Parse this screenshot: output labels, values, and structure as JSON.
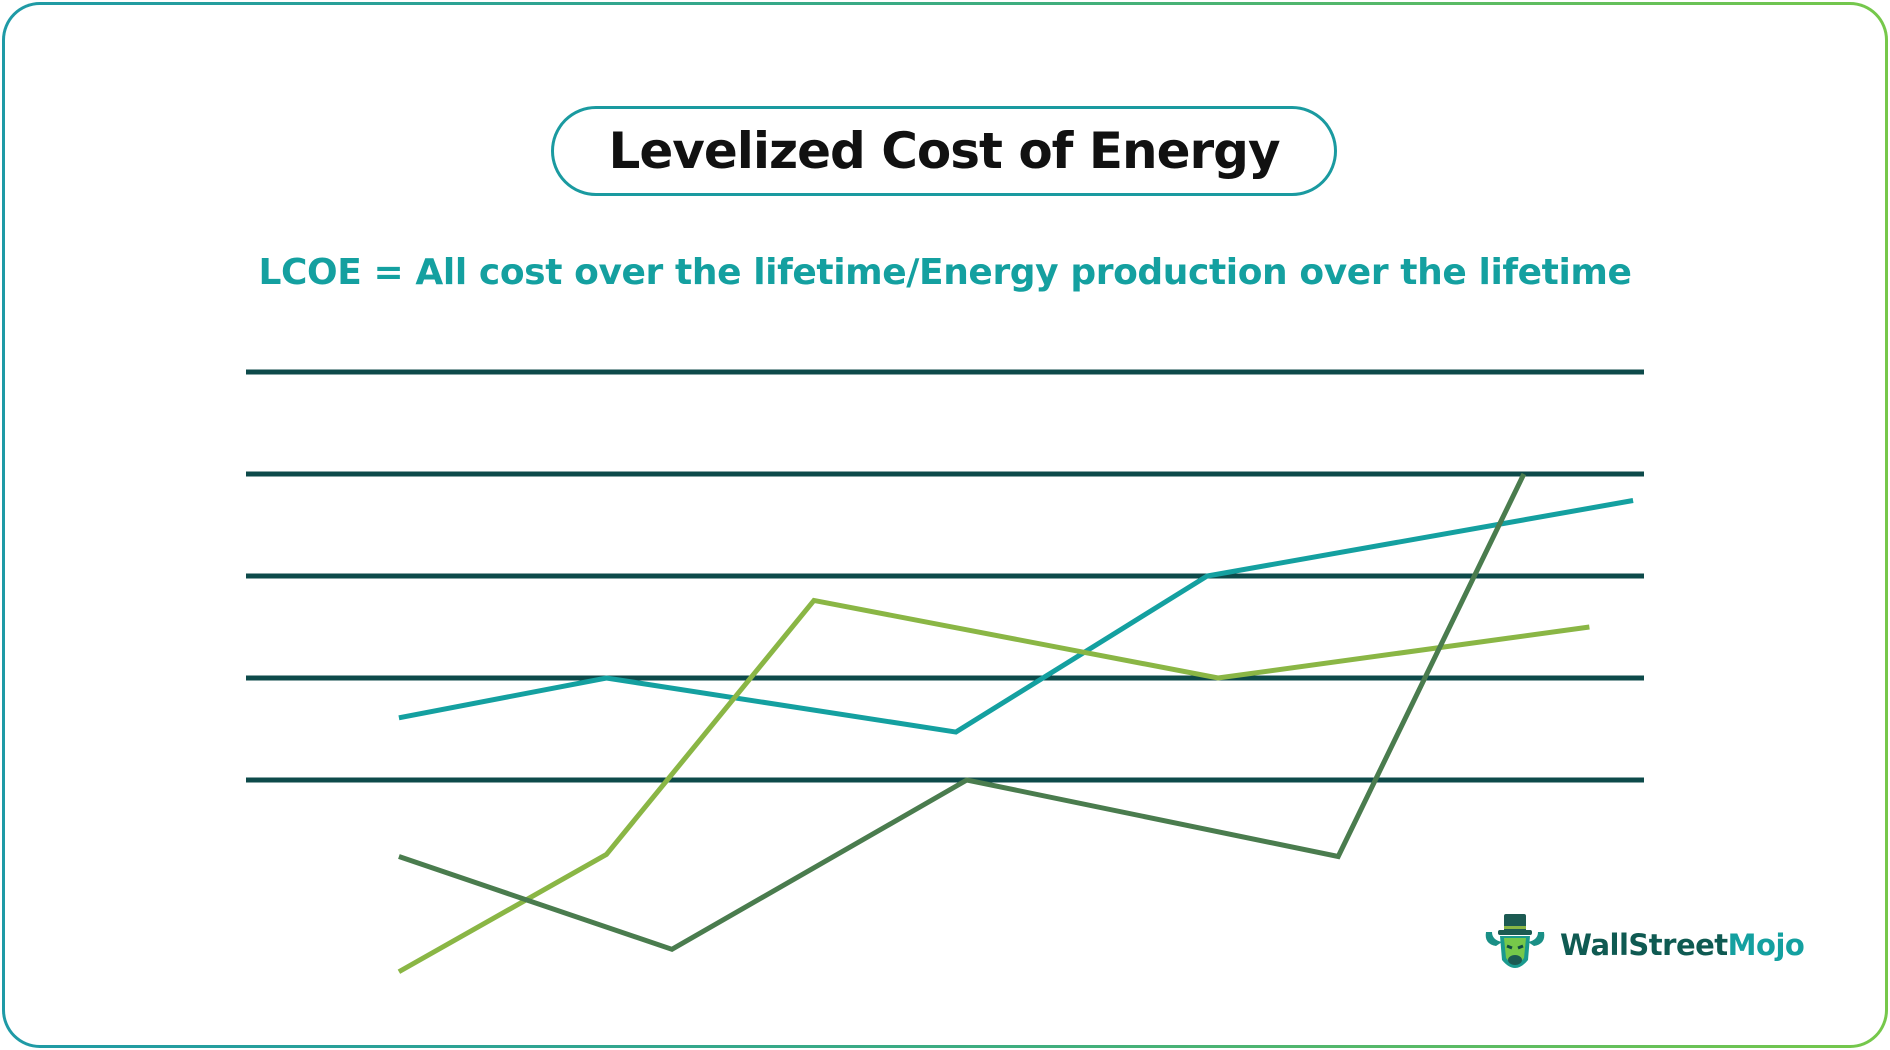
{
  "title": "Levelized Cost of Energy",
  "formula": "LCOE = All cost over the lifetime/Energy production over the lifetime",
  "brand": {
    "part1": "WallStreet",
    "part2": "Mojo"
  },
  "colors": {
    "gridline": "#0d4a4a",
    "teal_series": "#14a0a0",
    "light_green_series": "#8ab645",
    "dark_green_series": "#4a7c4e",
    "title_border": "#1a9aa0",
    "formula_text": "#14a0a0"
  },
  "chart_data": {
    "type": "line",
    "title": "",
    "xlabel": "",
    "ylabel": "",
    "grid": true,
    "gridlines": [
      1,
      2,
      3,
      4,
      5
    ],
    "ylim": [
      0,
      5
    ],
    "xlim": [
      0,
      12.8
    ],
    "series": [
      {
        "color": "#14a0a0",
        "points": [
          [
            1.4,
            1.61
          ],
          [
            3.3,
            2.0
          ],
          [
            6.5,
            1.47
          ],
          [
            8.8,
            3.0
          ],
          [
            12.7,
            3.74
          ]
        ]
      },
      {
        "color": "#8ab645",
        "points": [
          [
            1.4,
            -0.88
          ],
          [
            3.3,
            0.27
          ],
          [
            5.2,
            2.76
          ],
          [
            8.9,
            2.0
          ],
          [
            12.3,
            2.5
          ]
        ]
      },
      {
        "color": "#4a7c4e",
        "points": [
          [
            1.4,
            0.25
          ],
          [
            3.9,
            -0.66
          ],
          [
            6.6,
            1.0
          ],
          [
            10.0,
            0.25
          ],
          [
            11.7,
            4.0
          ]
        ]
      }
    ]
  }
}
